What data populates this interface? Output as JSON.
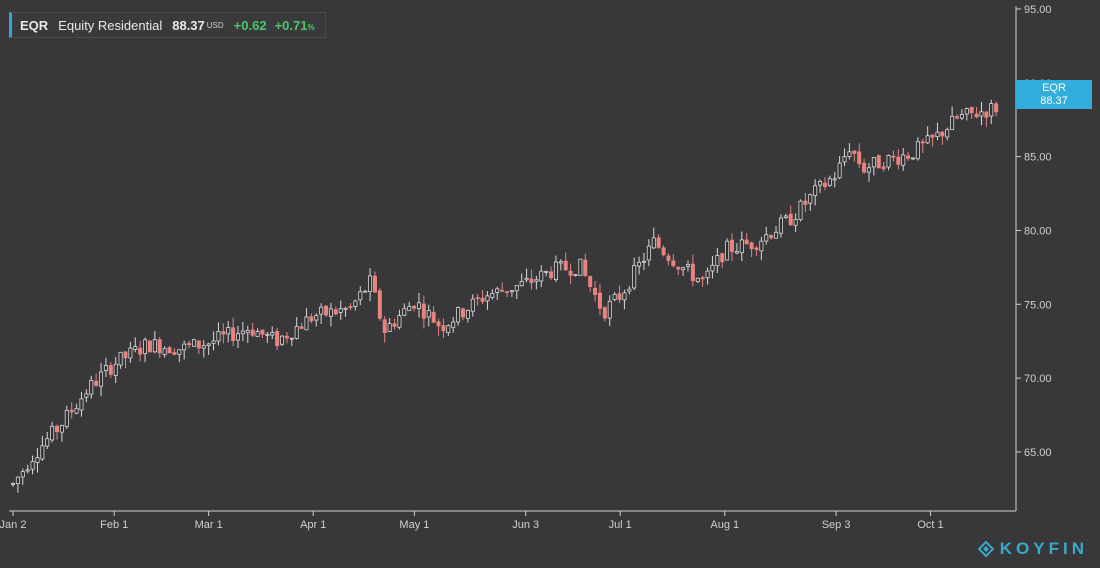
{
  "legend": {
    "ticker": "EQR",
    "name": "Equity Residential",
    "price": "88.37",
    "currency": "USD",
    "change": "+0.62",
    "change_pct": "+0.71",
    "pct_suffix": "%"
  },
  "price_tag": {
    "ticker": "EQR",
    "price": "88.37"
  },
  "brand": {
    "name": "KOYFIN"
  },
  "colors": {
    "background": "#38383b",
    "up_candle": "#2f2f31",
    "up_outline": "#d9d9d9",
    "down_candle": "#e8837e",
    "accent": "#31aedb",
    "positive": "#4cc66b",
    "axis": "#cfcfcf"
  },
  "chart_data": {
    "type": "candlestick",
    "title": "",
    "xlabel": "",
    "ylabel": "",
    "y_ticks": [
      "95.00",
      "90.00",
      "85.00",
      "80.00",
      "75.00",
      "70.00",
      "65.00"
    ],
    "x_ticks": [
      {
        "label": "Jan 2",
        "day": 0
      },
      {
        "label": "Feb 1",
        "day": 30
      },
      {
        "label": "Mar 1",
        "day": 58
      },
      {
        "label": "Apr 1",
        "day": 89
      },
      {
        "label": "May 1",
        "day": 119
      },
      {
        "label": "Jun 3",
        "day": 152
      },
      {
        "label": "Jul 1",
        "day": 180
      },
      {
        "label": "Aug 1",
        "day": 211
      },
      {
        "label": "Sep 3",
        "day": 244
      },
      {
        "label": "Oct 1",
        "day": 272
      }
    ],
    "ylim": [
      61.0,
      95.2
    ],
    "trend_points": [
      {
        "day": 0,
        "value": 62.8
      },
      {
        "day": 6,
        "value": 64.8
      },
      {
        "day": 14,
        "value": 66.8
      },
      {
        "day": 22,
        "value": 69.2
      },
      {
        "day": 30,
        "value": 71.0
      },
      {
        "day": 40,
        "value": 72.3
      },
      {
        "day": 50,
        "value": 72.0
      },
      {
        "day": 58,
        "value": 72.4
      },
      {
        "day": 70,
        "value": 73.4
      },
      {
        "day": 78,
        "value": 72.5
      },
      {
        "day": 89,
        "value": 74.2
      },
      {
        "day": 100,
        "value": 74.7
      },
      {
        "day": 106,
        "value": 76.5
      },
      {
        "day": 110,
        "value": 73.2
      },
      {
        "day": 119,
        "value": 75.2
      },
      {
        "day": 127,
        "value": 73.5
      },
      {
        "day": 140,
        "value": 75.6
      },
      {
        "day": 152,
        "value": 76.4
      },
      {
        "day": 160,
        "value": 77.3
      },
      {
        "day": 168,
        "value": 77.6
      },
      {
        "day": 175,
        "value": 74.5
      },
      {
        "day": 180,
        "value": 75.6
      },
      {
        "day": 190,
        "value": 79.2
      },
      {
        "day": 200,
        "value": 77.2
      },
      {
        "day": 205,
        "value": 76.5
      },
      {
        "day": 211,
        "value": 78.7
      },
      {
        "day": 220,
        "value": 79.2
      },
      {
        "day": 230,
        "value": 80.7
      },
      {
        "day": 238,
        "value": 82.6
      },
      {
        "day": 244,
        "value": 83.8
      },
      {
        "day": 248,
        "value": 85.7
      },
      {
        "day": 252,
        "value": 84.2
      },
      {
        "day": 258,
        "value": 84.7
      },
      {
        "day": 266,
        "value": 85.2
      },
      {
        "day": 272,
        "value": 86.0
      },
      {
        "day": 280,
        "value": 87.6
      },
      {
        "day": 288,
        "value": 88.1
      },
      {
        "day": 292,
        "value": 88.37
      }
    ]
  }
}
